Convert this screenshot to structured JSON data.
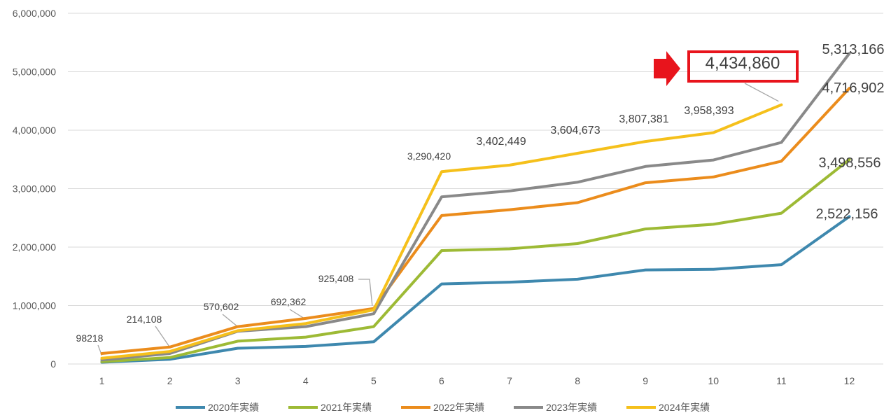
{
  "chart_data": {
    "type": "line",
    "title": "",
    "xlabel": "",
    "ylabel": "",
    "x": [
      1,
      2,
      3,
      4,
      5,
      6,
      7,
      8,
      9,
      10,
      11,
      12
    ],
    "x_tick_labels": [
      "1",
      "2",
      "3",
      "4",
      "5",
      "6",
      "7",
      "8",
      "9",
      "10",
      "11",
      "12"
    ],
    "ylim": [
      0,
      6000000
    ],
    "y_tick_labels": [
      "0",
      "1,000,000",
      "2,000,000",
      "3,000,000",
      "4,000,000",
      "5,000,000",
      "6,000,000"
    ],
    "y_ticks": [
      0,
      1000000,
      2000000,
      3000000,
      4000000,
      5000000,
      6000000
    ],
    "grid": "horizontal",
    "legend_position": "bottom",
    "series": [
      {
        "name": "2020年実績",
        "color": "#3E88AE",
        "values": [
          30000,
          80000,
          270000,
          300000,
          380000,
          1370000,
          1400000,
          1450000,
          1610000,
          1620000,
          1700000,
          2522156
        ]
      },
      {
        "name": "2021年実績",
        "color": "#9DBA35",
        "values": [
          40000,
          110000,
          390000,
          460000,
          640000,
          1940000,
          1970000,
          2060000,
          2310000,
          2390000,
          2580000,
          3498556
        ]
      },
      {
        "name": "2022年実績",
        "color": "#EB8C1C",
        "values": [
          180000,
          290000,
          640000,
          780000,
          950000,
          2540000,
          2640000,
          2760000,
          3100000,
          3200000,
          3470000,
          4716902
        ]
      },
      {
        "name": "2023年実績",
        "color": "#898989",
        "values": [
          70000,
          180000,
          560000,
          640000,
          860000,
          2860000,
          2960000,
          3110000,
          3380000,
          3490000,
          3790000,
          5313166
        ]
      },
      {
        "name": "2024年実績",
        "color": "#F5C01B",
        "values": [
          98218,
          214108,
          570602,
          692362,
          925408,
          3290420,
          3402449,
          3604673,
          3807381,
          3958393,
          4434860,
          null
        ]
      }
    ],
    "data_labels": [
      {
        "text": "98218",
        "series": 4,
        "index": 0
      },
      {
        "text": "214,108",
        "series": 4,
        "index": 1
      },
      {
        "text": "570,602",
        "series": 4,
        "index": 2
      },
      {
        "text": "692,362",
        "series": 4,
        "index": 3
      },
      {
        "text": "925,408",
        "series": 4,
        "index": 4
      },
      {
        "text": "3,290,420",
        "series": 4,
        "index": 5
      },
      {
        "text": "3,402,449",
        "series": 4,
        "index": 6
      },
      {
        "text": "3,604,673",
        "series": 4,
        "index": 7
      },
      {
        "text": "3,807,381",
        "series": 4,
        "index": 8
      },
      {
        "text": "3,958,393",
        "series": 4,
        "index": 9
      },
      {
        "text": "4,434,860",
        "series": 4,
        "index": 10,
        "highlight": true
      },
      {
        "text": "5,313,166",
        "series": 3,
        "index": 11
      },
      {
        "text": "4,716,902",
        "series": 2,
        "index": 11
      },
      {
        "text": "3,498,556",
        "series": 1,
        "index": 11
      },
      {
        "text": "2,522,156",
        "series": 0,
        "index": 11
      }
    ],
    "highlight_color": "#E8141C"
  }
}
